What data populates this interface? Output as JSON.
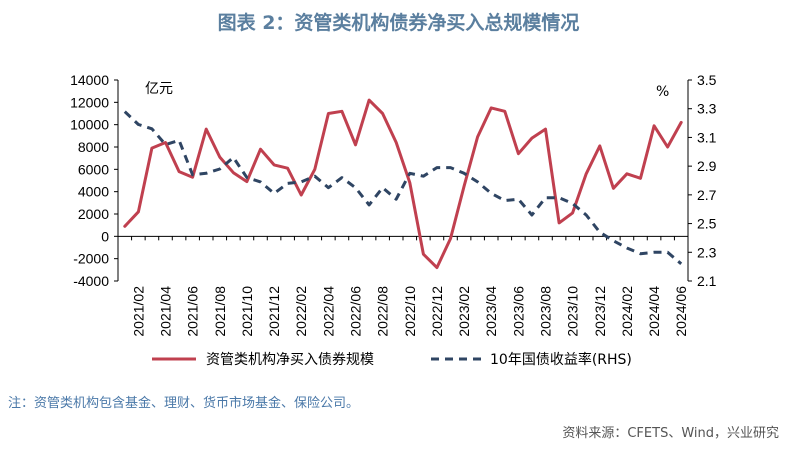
{
  "title": "图表 2：资管类机构债券净买入总规模情况",
  "note": "注：资管类机构包含基金、理财、货币市场基金、保险公司。",
  "source": "资料来源：CFETS、Wind，兴业研究",
  "colors": {
    "title": "#5b7f9f",
    "net_buy": "#c0404f",
    "yield": "#2f4563",
    "note": "#4a78a8"
  },
  "chart_data": {
    "type": "line",
    "left_unit": "亿元",
    "right_unit": "%",
    "y_left": {
      "min": -4000,
      "max": 14000,
      "ticks": [
        -4000,
        -2000,
        0,
        2000,
        4000,
        6000,
        8000,
        10000,
        12000,
        14000
      ]
    },
    "y_right": {
      "min": 2.1,
      "max": 3.5,
      "ticks": [
        2.1,
        2.3,
        2.5,
        2.7,
        2.9,
        3.1,
        3.3,
        3.5
      ]
    },
    "x_tick_labels": [
      "2021/02",
      "2021/04",
      "2021/06",
      "2021/08",
      "2021/10",
      "2021/12",
      "2022/02",
      "2022/04",
      "2022/06",
      "2022/08",
      "2022/10",
      "2022/12",
      "2023/02",
      "2023/04",
      "2023/06",
      "2023/08",
      "2023/10",
      "2023/12",
      "2024/02",
      "2024/04",
      "2024/06"
    ],
    "series": [
      {
        "name": "资管类机构净买入债券规模",
        "axis": "left",
        "style": "solid",
        "x": [
          "2021/01",
          "2021/02",
          "2021/03",
          "2021/04",
          "2021/05",
          "2021/06",
          "2021/07",
          "2021/08",
          "2021/09",
          "2021/10",
          "2021/11",
          "2021/12",
          "2022/01",
          "2022/02",
          "2022/03",
          "2022/04",
          "2022/05",
          "2022/06",
          "2022/07",
          "2022/08",
          "2022/09",
          "2022/10",
          "2022/11",
          "2022/12",
          "2023/01",
          "2023/02",
          "2023/03",
          "2023/04",
          "2023/05",
          "2023/06",
          "2023/07",
          "2023/08",
          "2023/09",
          "2023/10",
          "2023/11",
          "2023/12",
          "2024/01",
          "2024/02",
          "2024/03",
          "2024/04",
          "2024/05",
          "2024/06"
        ],
        "values": [
          900,
          2200,
          7900,
          8400,
          5800,
          5300,
          9600,
          7100,
          5700,
          4900,
          7800,
          6400,
          6100,
          3700,
          6000,
          11000,
          11200,
          8200,
          12200,
          11000,
          8400,
          4800,
          -1600,
          -2800,
          -200,
          4500,
          8900,
          11500,
          11200,
          7400,
          8800,
          9600,
          1200,
          2100,
          5600,
          8100,
          4300,
          5600,
          5200,
          9900,
          8000,
          10200
        ]
      },
      {
        "name": "10年国债收益率(RHS)",
        "axis": "right",
        "style": "dashed",
        "x": [
          "2021/01",
          "2021/02",
          "2021/03",
          "2021/04",
          "2021/05",
          "2021/06",
          "2021/07",
          "2021/08",
          "2021/09",
          "2021/10",
          "2021/11",
          "2021/12",
          "2022/01",
          "2022/02",
          "2022/03",
          "2022/04",
          "2022/05",
          "2022/06",
          "2022/07",
          "2022/08",
          "2022/09",
          "2022/10",
          "2022/11",
          "2022/12",
          "2023/01",
          "2023/02",
          "2023/03",
          "2023/04",
          "2023/05",
          "2023/06",
          "2023/07",
          "2023/08",
          "2023/09",
          "2023/10",
          "2023/11",
          "2023/12",
          "2024/01",
          "2024/02",
          "2024/03",
          "2024/04",
          "2024/05",
          "2024/06"
        ],
        "values": [
          3.28,
          3.19,
          3.16,
          3.05,
          3.08,
          2.84,
          2.85,
          2.88,
          2.96,
          2.82,
          2.79,
          2.71,
          2.78,
          2.79,
          2.83,
          2.75,
          2.82,
          2.75,
          2.63,
          2.75,
          2.67,
          2.85,
          2.83,
          2.89,
          2.89,
          2.85,
          2.79,
          2.71,
          2.66,
          2.67,
          2.56,
          2.68,
          2.68,
          2.64,
          2.56,
          2.44,
          2.38,
          2.33,
          2.29,
          2.3,
          2.3,
          2.22
        ]
      }
    ],
    "grid": false,
    "legend_position": "bottom"
  }
}
